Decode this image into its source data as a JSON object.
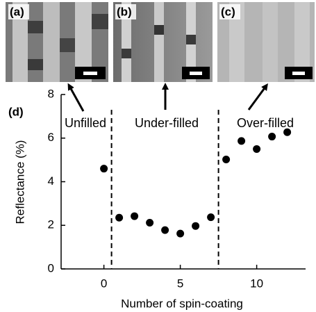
{
  "panels": [
    "(a)",
    "(b)",
    "(c)"
  ],
  "chart_data": {
    "type": "scatter",
    "panel_label": "(d)",
    "x": [
      0,
      1,
      2,
      3,
      4,
      5,
      6,
      7,
      8,
      9,
      10,
      11,
      12
    ],
    "values": [
      4.6,
      2.35,
      2.42,
      2.12,
      1.78,
      1.62,
      1.97,
      2.37,
      5.02,
      5.87,
      5.5,
      6.07,
      6.27
    ],
    "color": "#000000",
    "xlim": [
      -2.8,
      13.2
    ],
    "ylim": [
      0,
      8
    ],
    "xticks": [
      0,
      5,
      10
    ],
    "yticks": [
      0,
      2,
      4,
      6,
      8
    ],
    "xlabel": "Number of spin-coating",
    "ylabel": "Reflectance (%)",
    "dividers": [
      0.5,
      7.5
    ],
    "regions": [
      "Unfilled",
      "Under-filled",
      "Over-filled"
    ]
  }
}
